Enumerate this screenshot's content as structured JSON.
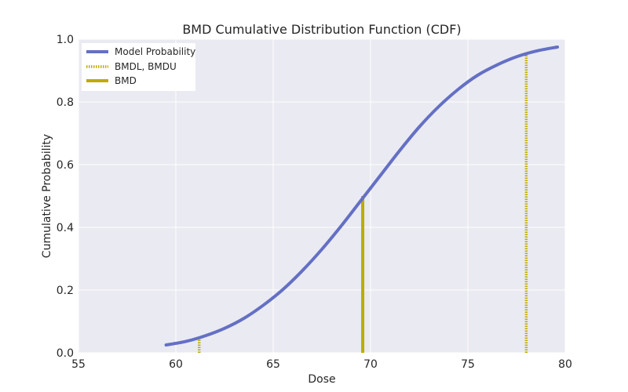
{
  "chart_data": {
    "type": "line",
    "title": "BMD Cumulative Distribution Function (CDF)",
    "xlabel": "Dose",
    "ylabel": "Cumulative Probability",
    "xlim": [
      55,
      80
    ],
    "ylim": [
      0,
      1.0
    ],
    "xticks": [
      "55",
      "60",
      "65",
      "70",
      "75",
      "80"
    ],
    "yticks": [
      "0.0",
      "0.2",
      "0.4",
      "0.6",
      "0.8",
      "1.0"
    ],
    "grid": true,
    "legend_position": "top-left",
    "colors": {
      "background": "#eaeaf2",
      "grid": "#ffffff",
      "model": "#6470c4",
      "bmd": "#bfaa00"
    },
    "series": [
      {
        "name": "Model Probability",
        "x": [
          59.5,
          60.5,
          61.5,
          62.5,
          63.5,
          64.5,
          65.5,
          66.5,
          67.5,
          68.5,
          69.5,
          70.5,
          71.5,
          72.5,
          73.5,
          74.5,
          75.5,
          76.5,
          77.5,
          78.5,
          79.6
        ],
        "y": [
          0.025,
          0.036,
          0.054,
          0.078,
          0.11,
          0.152,
          0.202,
          0.262,
          0.33,
          0.405,
          0.485,
          0.565,
          0.645,
          0.72,
          0.785,
          0.84,
          0.885,
          0.918,
          0.944,
          0.962,
          0.975
        ]
      }
    ],
    "vlines": [
      {
        "name": "BMDL, BMDU",
        "style": "dotted",
        "x": 61.2,
        "ymax": 0.05
      },
      {
        "name": "BMDL, BMDU",
        "style": "dotted",
        "x": 78.0,
        "ymax": 0.95
      },
      {
        "name": "BMD",
        "style": "solid",
        "x": 69.6,
        "ymax": 0.5
      }
    ],
    "legend": [
      {
        "label": "Model Probability",
        "style": "line-model"
      },
      {
        "label": "BMDL, BMDU",
        "style": "dotted-bmd"
      },
      {
        "label": "BMD",
        "style": "solid-bmd"
      }
    ]
  }
}
